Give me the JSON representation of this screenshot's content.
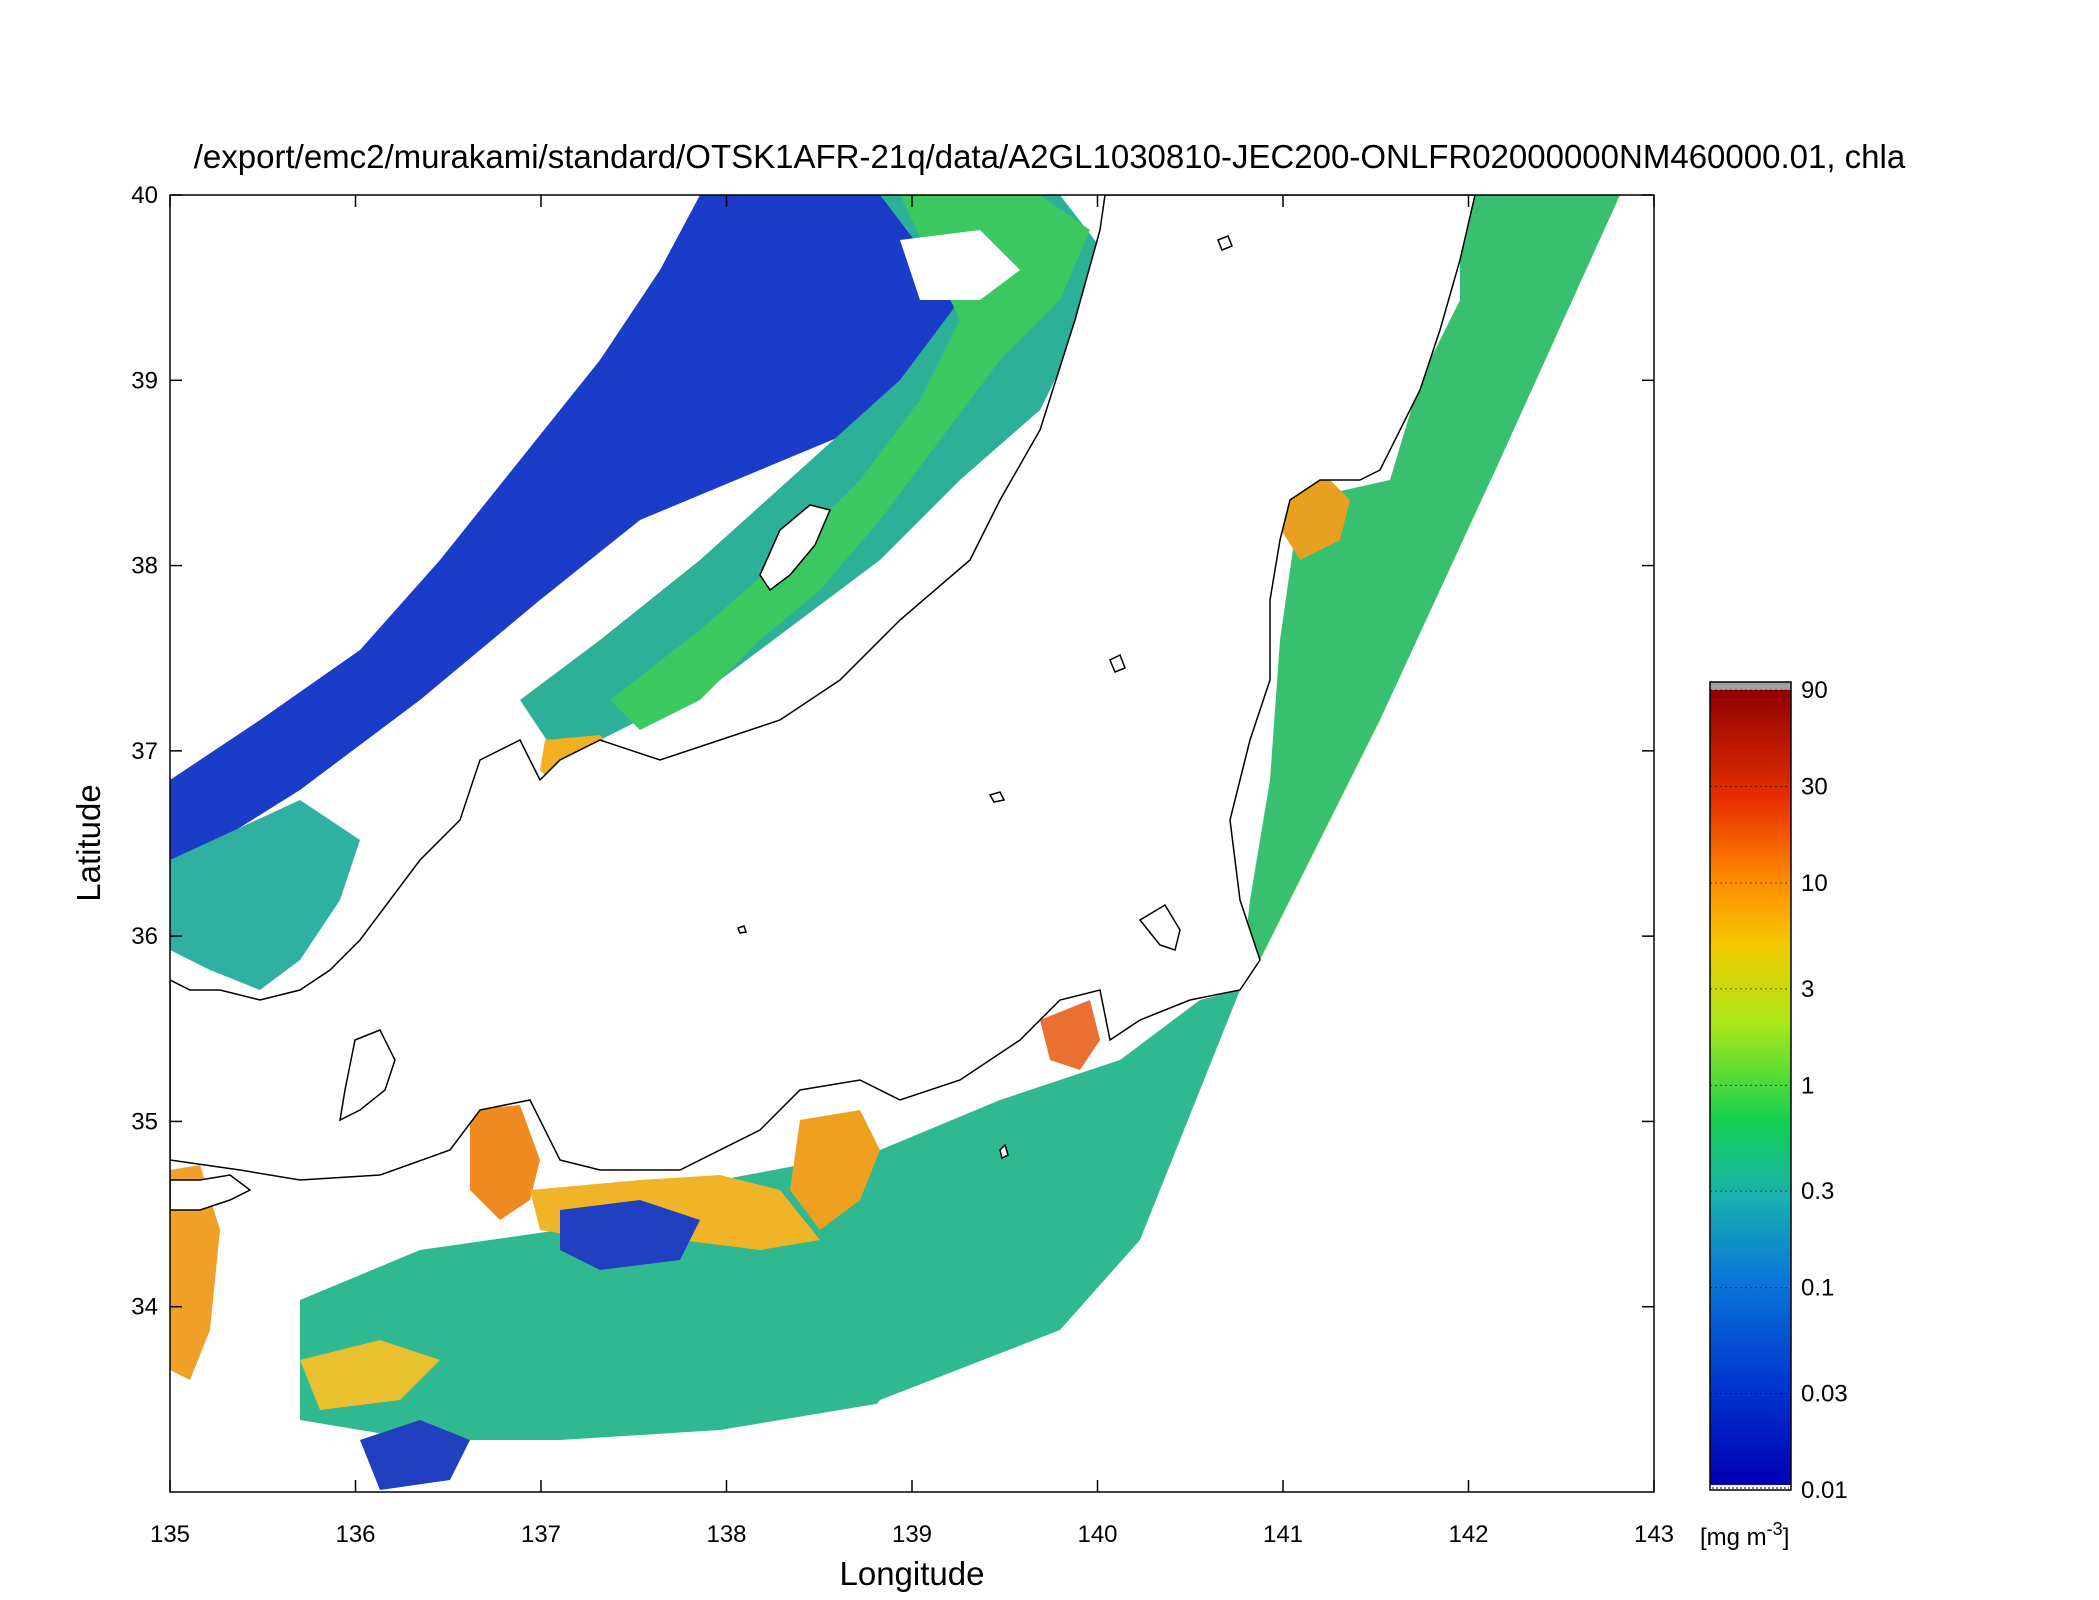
{
  "title": "/export/emc2/murakami/standard/OTSK1AFR-21q/data/A2GL1030810-JEC200-ONLFR02000000NM460000.01, chla",
  "map": {
    "x_label": "Longitude",
    "y_label": "Latitude",
    "lon_range": [
      135,
      143
    ],
    "lat_range": [
      33.0,
      40.0
    ],
    "lon_ticks": [
      "135",
      "136",
      "137",
      "138",
      "139",
      "140",
      "141",
      "142",
      "143"
    ],
    "lat_ticks": [
      "34",
      "35",
      "36",
      "37",
      "38",
      "39",
      "40"
    ]
  },
  "colorbar": {
    "unit_main": "[mg m",
    "unit_exp": "-3",
    "unit_close": "]",
    "scale": "log",
    "range": [
      0.01,
      90
    ],
    "tick_labels": [
      "0.01",
      "0.03",
      "0.1",
      "0.3",
      "1",
      "3",
      "10",
      "30",
      "90"
    ],
    "tick_values": [
      0.01,
      0.03,
      0.1,
      0.3,
      1,
      3,
      10,
      30,
      90
    ],
    "colors": [
      "#0000b4",
      "#0050d8",
      "#1ea0c8",
      "#18c890",
      "#20d020",
      "#b4e814",
      "#ffb400",
      "#f05000",
      "#960000"
    ]
  },
  "colors": {
    "land": "#ffffff",
    "coast": "#000000",
    "cloud": "#ffffff",
    "low_chla": "#1030c8",
    "mid_chla": "#30b8a0",
    "high_chla": "#f0a020"
  }
}
